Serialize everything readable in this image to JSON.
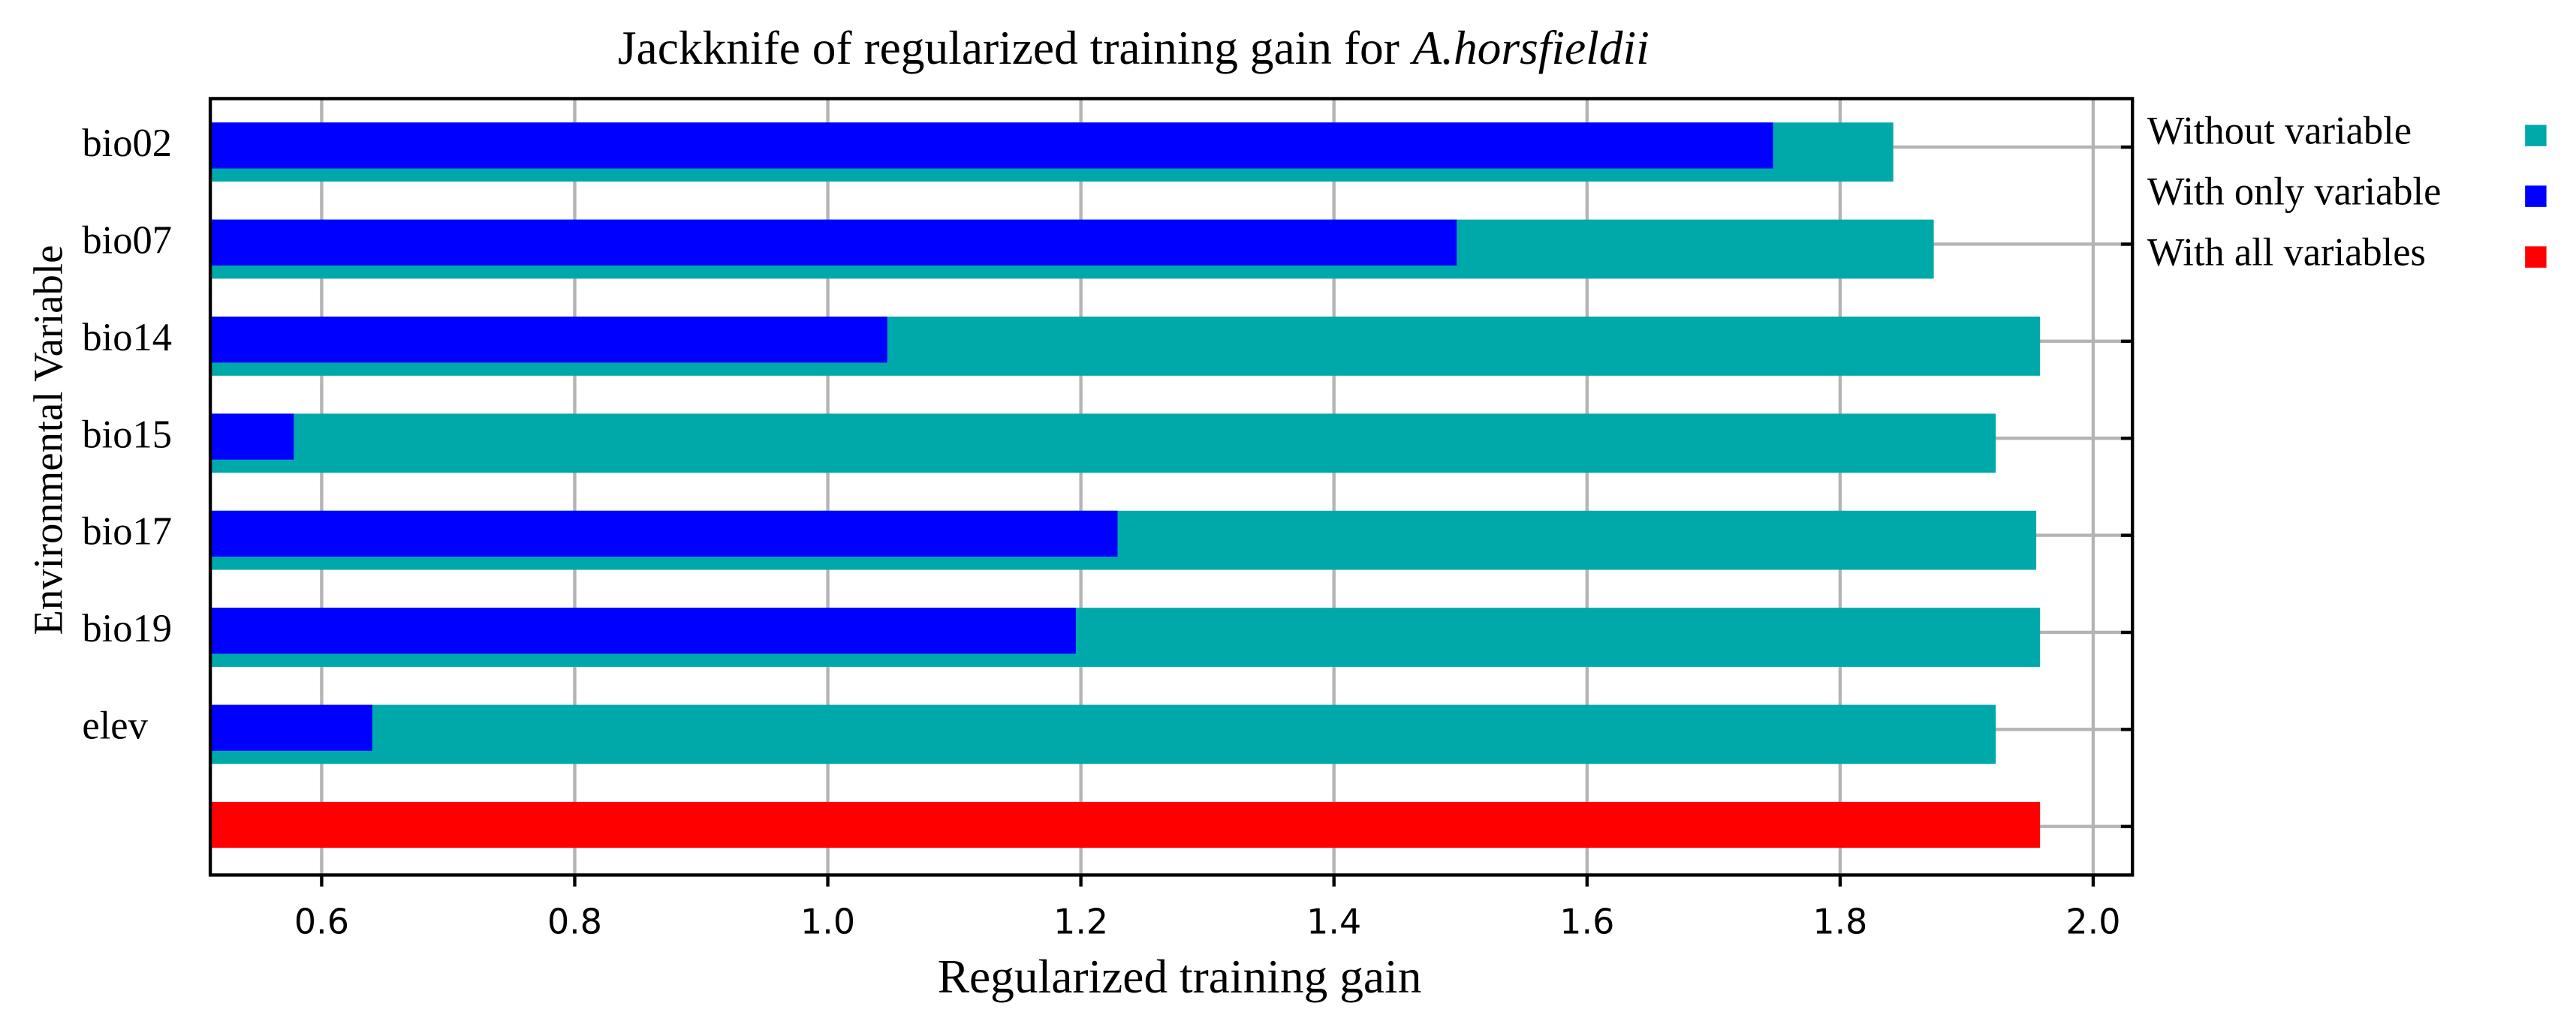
{
  "chart_data": {
    "type": "barh",
    "title": [
      "Jackknife of regularized training gain for",
      "A.horsfieldii"
    ],
    "xlabel": "Regularized training gain",
    "ylabel": "Environmental Variable",
    "categories": [
      "bio02",
      "bio07",
      "bio14",
      "bio15",
      "bio17",
      "bio19",
      "elev",
      null
    ],
    "series": [
      {
        "name": "Without variable",
        "color": "#00a9a9",
        "values": [
          1.842,
          1.874,
          1.958,
          1.923,
          1.955,
          1.958,
          1.923,
          null
        ]
      },
      {
        "name": "With only variable",
        "color": "#0000ff",
        "values": [
          1.747,
          1.497,
          1.047,
          0.578,
          1.229,
          1.196,
          0.64,
          null
        ]
      },
      {
        "name": "With all variables",
        "color": "#ff0000",
        "values": [
          null,
          null,
          null,
          null,
          null,
          null,
          null,
          1.958
        ]
      }
    ],
    "xlim": [
      0.512,
      2.031
    ],
    "xticks": [
      0.6,
      0.8,
      {
        "value": 1,
        "label": "1.0"
      },
      1.2,
      1.4,
      1.6,
      1.8,
      {
        "value": 2,
        "label": "2.0"
      }
    ],
    "grid": true,
    "legend": "right"
  }
}
